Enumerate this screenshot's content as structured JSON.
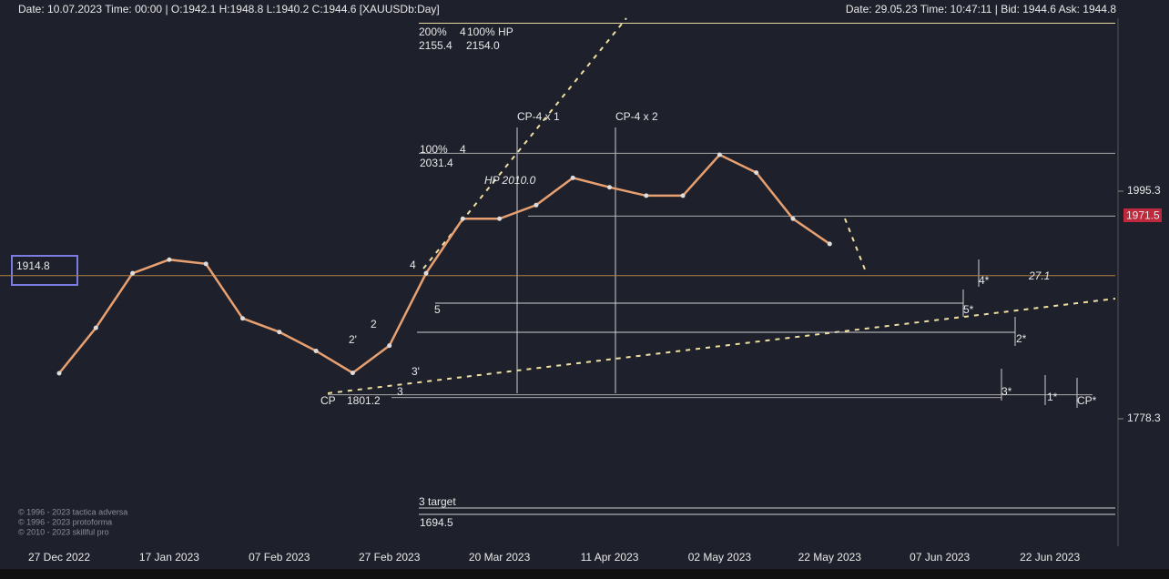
{
  "header": {
    "left": "Date: 10.07.2023 Time: 00:00 | O:1942.1 H:1948.8 L:1940.2 C:1944.6 [XAUUSDb:Day]",
    "right": "Date: 29.05.23 Time: 10:47:11 | Bid: 1944.6 Ask: 1944.8"
  },
  "copyright": [
    "© 1996 - 2023 tactica adversa",
    "© 1996 - 2023 protoforma",
    "© 2010 - 2023 skillful pro"
  ],
  "chart_data": {
    "type": "line",
    "categories": [
      "27 Dec 2022",
      null,
      null,
      "17 Jan 2023",
      null,
      null,
      "07 Feb 2023",
      null,
      null,
      "27 Feb 2023",
      null,
      null,
      "20 Mar 2023",
      null,
      null,
      "11 Apr 2023",
      null,
      null,
      "02 May 2023",
      null,
      null,
      "22 May 2023",
      null,
      null,
      "07 Jun 2023",
      null,
      null,
      "22 Jun 2023"
    ],
    "series": [
      {
        "name": "XAUUSDb",
        "color": "#e8a070",
        "values": [
          1821.7,
          1865,
          1917,
          1930,
          1926,
          1874,
          1861,
          1843,
          1822,
          1848,
          1917,
          1969,
          1969,
          1982,
          2008,
          1999,
          1991,
          1991,
          2030,
          2013,
          1969,
          1945,
          null,
          null,
          null,
          null,
          null,
          null
        ]
      }
    ],
    "ylim": [
      1661.1,
      2160.2
    ],
    "yticks": [
      1995.3,
      1778.3
    ],
    "price_marker": 1971.5,
    "levels": [
      2155.4,
      2031.4,
      1971.5,
      1914.8,
      1801.2
    ],
    "annotations": [
      "200%",
      "4",
      "100% HP",
      "2155.4",
      "2154.0",
      "CP-4 x 1",
      "CP-4 x 2",
      "100%",
      "4",
      "2031.4",
      "HP 2010.0",
      "4",
      "5",
      "2",
      "2'",
      "3'",
      "3",
      "CP",
      "1801.2",
      "4*",
      "27.1",
      "5*",
      "2*",
      "3*",
      "1*",
      "CP*",
      "3 target",
      "1694.5",
      "1914.8"
    ]
  }
}
